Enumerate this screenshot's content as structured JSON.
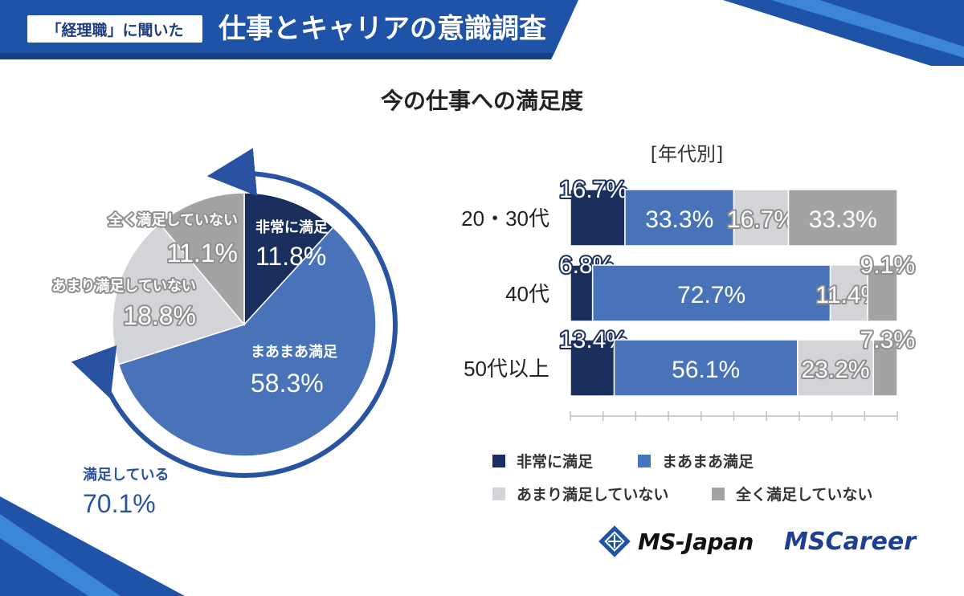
{
  "header": {
    "badge": "「経理職」に聞いた",
    "title": "仕事とキャリアの意識調査",
    "bg_color": "#1e53a8"
  },
  "chart_data": [
    {
      "type": "pie",
      "title": "今の仕事への満足度",
      "slices": [
        {
          "label": "非常に満足",
          "value": 11.8,
          "display": "11.8%",
          "color": "#1b2f5e"
        },
        {
          "label": "まあまあ満足",
          "value": 58.3,
          "display": "58.3%",
          "color": "#4873b9"
        },
        {
          "label": "あまり満足していない",
          "value": 18.8,
          "display": "18.8%",
          "color": "#d3d4d8"
        },
        {
          "label": "全く満足していない",
          "value": 11.1,
          "display": "11.1%",
          "color": "#a3a3a3"
        }
      ],
      "annotation": {
        "label": "満足している",
        "value": "70.1%"
      }
    },
    {
      "type": "bar",
      "orientation": "horizontal",
      "stacked": true,
      "subtitle": "[年代別]",
      "categories": [
        "20・30代",
        "40代",
        "50代以上"
      ],
      "series": [
        {
          "name": "非常に満足",
          "color": "#1b2f5e",
          "values": [
            16.7,
            6.8,
            13.4
          ],
          "labels": [
            "16.7%",
            "6.8%",
            "13.4%"
          ]
        },
        {
          "name": "まあまあ満足",
          "color": "#4873b9",
          "values": [
            33.3,
            72.7,
            56.1
          ],
          "labels": [
            "33.3%",
            "72.7%",
            "56.1%"
          ]
        },
        {
          "name": "あまり満足していない",
          "color": "#d3d4d8",
          "values": [
            16.7,
            11.4,
            23.2
          ],
          "labels": [
            "16.7%",
            "11.4%",
            "23.2%"
          ]
        },
        {
          "name": "全く満足していない",
          "color": "#a3a3a3",
          "values": [
            33.3,
            9.1,
            7.3
          ],
          "labels": [
            "33.3%",
            "9.1%",
            "7.3%"
          ]
        }
      ],
      "xlim": [
        0,
        100
      ]
    }
  ],
  "logos": {
    "ms_japan": "MS-Japan",
    "ms_career": "MSCareer"
  }
}
